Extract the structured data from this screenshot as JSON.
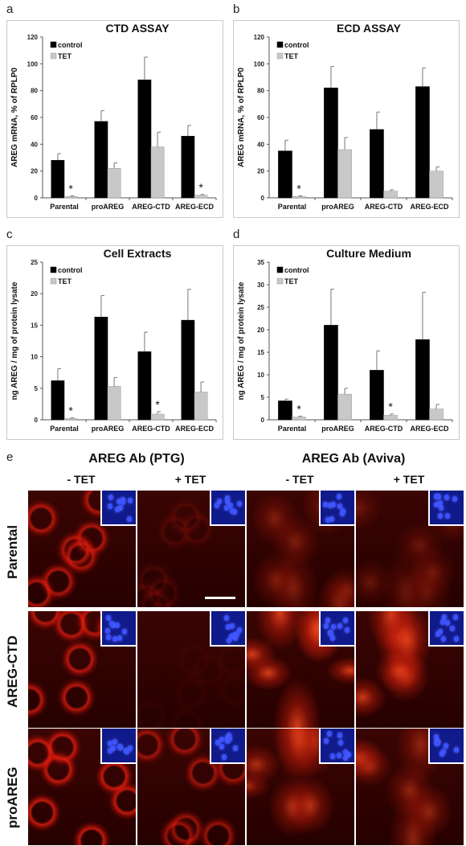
{
  "panel_letters": {
    "a": "a",
    "b": "b",
    "c": "c",
    "d": "d",
    "e": "e"
  },
  "chart_data": [
    {
      "id": "a",
      "type": "bar",
      "title": "CTD ASSAY",
      "ylabel": "AREG mRNA, % of RPLP0",
      "xlabel": "",
      "categories": [
        "Parental",
        "proAREG",
        "AREG-CTD",
        "AREG-ECD"
      ],
      "ylim": [
        0,
        120
      ],
      "yticks": [
        0,
        20,
        40,
        60,
        80,
        100,
        120
      ],
      "legend": "top-left",
      "series": [
        {
          "name": "control",
          "color": "#000000",
          "values": [
            28,
            57,
            88,
            46
          ],
          "errors": [
            5,
            8,
            17,
            8
          ]
        },
        {
          "name": "TET",
          "color": "#c8c8c8",
          "values": [
            1,
            22,
            38,
            2
          ],
          "errors": [
            0.5,
            4,
            11,
            0.5
          ]
        }
      ],
      "significance": [
        {
          "category": "Parental",
          "label": "*"
        },
        {
          "category": "AREG-ECD",
          "label": "*"
        }
      ]
    },
    {
      "id": "b",
      "type": "bar",
      "title": "ECD ASSAY",
      "ylabel": "AREG mRNA, % of RPLP0",
      "xlabel": "",
      "categories": [
        "Parental",
        "proAREG",
        "AREG-CTD",
        "AREG-ECD"
      ],
      "ylim": [
        0,
        120
      ],
      "yticks": [
        0,
        20,
        40,
        60,
        80,
        100,
        120
      ],
      "legend": "top-left",
      "series": [
        {
          "name": "control",
          "color": "#000000",
          "values": [
            35,
            82,
            51,
            83
          ],
          "errors": [
            8,
            16,
            13,
            14
          ]
        },
        {
          "name": "TET",
          "color": "#c8c8c8",
          "values": [
            1,
            36,
            5,
            20
          ],
          "errors": [
            0.5,
            9,
            1,
            3
          ]
        }
      ],
      "significance": [
        {
          "category": "Parental",
          "label": "*"
        }
      ]
    },
    {
      "id": "c",
      "type": "bar",
      "title": "Cell Extracts",
      "ylabel": "ng AREG / mg of protein lysate",
      "xlabel": "",
      "categories": [
        "Parental",
        "proAREG",
        "AREG-CTD",
        "AREG-ECD"
      ],
      "ylim": [
        0,
        25
      ],
      "yticks": [
        0,
        5,
        10,
        15,
        20,
        25
      ],
      "legend": "top-left",
      "series": [
        {
          "name": "control",
          "color": "#000000",
          "values": [
            6.2,
            16.3,
            10.8,
            15.8
          ],
          "errors": [
            1.9,
            3.4,
            3.1,
            4.9
          ]
        },
        {
          "name": "TET",
          "color": "#c8c8c8",
          "values": [
            0.2,
            5.3,
            0.9,
            4.4
          ],
          "errors": [
            0.1,
            1.4,
            0.4,
            1.6
          ]
        }
      ],
      "significance": [
        {
          "category": "Parental",
          "label": "*"
        },
        {
          "category": "AREG-CTD",
          "label": "*"
        }
      ]
    },
    {
      "id": "d",
      "type": "bar",
      "title": "Culture Medium",
      "ylabel": "ng AREG / mg of protein lysate",
      "xlabel": "",
      "categories": [
        "Parental",
        "proAREG",
        "AREG-CTD",
        "AREG-ECD"
      ],
      "ylim": [
        0,
        35
      ],
      "yticks": [
        0,
        5,
        10,
        15,
        20,
        25,
        30,
        35
      ],
      "legend": "top-left",
      "series": [
        {
          "name": "control",
          "color": "#000000",
          "values": [
            4.2,
            21,
            11,
            17.8
          ],
          "errors": [
            0.4,
            8,
            4.3,
            10.5
          ]
        },
        {
          "name": "TET",
          "color": "#c8c8c8",
          "values": [
            0.6,
            5.7,
            1,
            2.4
          ],
          "errors": [
            0.2,
            1.3,
            0.3,
            1
          ]
        }
      ],
      "significance": [
        {
          "category": "Parental",
          "label": "*"
        },
        {
          "category": "AREG-CTD",
          "label": "*"
        }
      ]
    }
  ],
  "micrograph": {
    "antibody_titles": [
      "AREG Ab (PTG)",
      "AREG Ab (Aviva)"
    ],
    "column_labels": [
      "- TET",
      "+ TET",
      "- TET",
      "+ TET"
    ],
    "row_labels": [
      "Parental",
      "AREG-CTD",
      "proAREG"
    ],
    "colors": {
      "stain": "#e01a0a",
      "background": "#2a0000",
      "nuclear_inset": "#101a8a"
    }
  }
}
